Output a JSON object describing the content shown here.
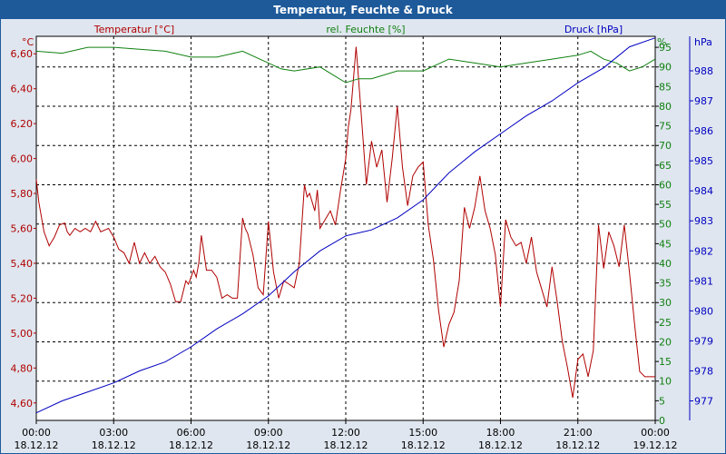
{
  "window": {
    "title": "Temperatur, Feuchte & Druck",
    "border_color": "#1e5a9a",
    "background": "#dfe6ef"
  },
  "chart_data": {
    "type": "line",
    "title": "Temperatur, Feuchte & Druck",
    "grid": true,
    "x_labels": [
      {
        "time": "00:00",
        "date": "18.12.12"
      },
      {
        "time": "03:00",
        "date": "18.12.12"
      },
      {
        "time": "06:00",
        "date": "18.12.12"
      },
      {
        "time": "09:00",
        "date": "18.12.12"
      },
      {
        "time": "12:00",
        "date": "18.12.12"
      },
      {
        "time": "15:00",
        "date": "18.12.12"
      },
      {
        "time": "18:00",
        "date": "18.12.12"
      },
      {
        "time": "21:00",
        "date": "18.12.12"
      },
      {
        "time": "00:00",
        "date": "19.12.12"
      }
    ],
    "xlim": [
      0,
      24
    ],
    "axes": {
      "temperature": {
        "unit": "°C",
        "ylim": [
          4.5,
          6.7
        ],
        "ticks": [
          {
            "v": 4.6,
            "label": "4,60"
          },
          {
            "v": 4.8,
            "label": "4,80"
          },
          {
            "v": 5.0,
            "label": "5,00"
          },
          {
            "v": 5.2,
            "label": "5,20"
          },
          {
            "v": 5.4,
            "label": "5,40"
          },
          {
            "v": 5.6,
            "label": "5,60"
          },
          {
            "v": 5.8,
            "label": "5,80"
          },
          {
            "v": 6.0,
            "label": "6,00"
          },
          {
            "v": 6.2,
            "label": "6,20"
          },
          {
            "v": 6.4,
            "label": "6,40"
          },
          {
            "v": 6.6,
            "label": "6,60"
          }
        ]
      },
      "humidity": {
        "unit": "%",
        "ylim": [
          0,
          97.8
        ],
        "ticks": [
          "0",
          "5",
          "10",
          "15",
          "20",
          "25",
          "30",
          "35",
          "40",
          "45",
          "50",
          "55",
          "60",
          "65",
          "70",
          "75",
          "80",
          "85",
          "90",
          "95"
        ]
      },
      "pressure": {
        "unit": "hPa",
        "ylim": [
          976.35,
          989.15
        ],
        "ticks": [
          "977",
          "978",
          "979",
          "980",
          "981",
          "982",
          "983",
          "984",
          "985",
          "986",
          "987",
          "988"
        ]
      }
    },
    "series": [
      {
        "name": "Temperatur [°C]",
        "axis": "temperature",
        "color": "#b00000",
        "x": [
          0.0,
          0.1,
          0.3,
          0.5,
          0.7,
          0.9,
          1.1,
          1.2,
          1.3,
          1.5,
          1.7,
          1.9,
          2.1,
          2.3,
          2.5,
          2.8,
          3.0,
          3.2,
          3.4,
          3.6,
          3.8,
          4.0,
          4.2,
          4.4,
          4.6,
          4.8,
          5.0,
          5.2,
          5.4,
          5.6,
          5.8,
          5.9,
          6.0,
          6.1,
          6.2,
          6.3,
          6.4,
          6.6,
          6.8,
          7.0,
          7.2,
          7.4,
          7.6,
          7.7,
          7.8,
          8.0,
          8.1,
          8.2,
          8.4,
          8.6,
          8.8,
          9.0,
          9.2,
          9.4,
          9.6,
          9.8,
          10.0,
          10.2,
          10.4,
          10.5,
          10.6,
          10.8,
          10.9,
          11.0,
          11.2,
          11.4,
          11.6,
          11.8,
          12.0,
          12.1,
          12.2,
          12.4,
          12.6,
          12.8,
          13.0,
          13.2,
          13.4,
          13.6,
          13.8,
          14.0,
          14.2,
          14.4,
          14.6,
          14.8,
          15.0,
          15.2,
          15.4,
          15.6,
          15.8,
          16.0,
          16.2,
          16.4,
          16.6,
          16.8,
          17.0,
          17.2,
          17.4,
          17.6,
          17.8,
          18.0,
          18.2,
          18.4,
          18.6,
          18.8,
          19.0,
          19.2,
          19.4,
          19.6,
          19.8,
          20.0,
          20.2,
          20.4,
          20.6,
          20.8,
          21.0,
          21.2,
          21.4,
          21.6,
          21.8,
          22.0,
          22.2,
          22.4,
          22.6,
          22.8,
          23.0,
          23.2,
          23.4,
          23.6,
          23.8,
          24.0
        ],
        "values": [
          5.88,
          5.75,
          5.58,
          5.5,
          5.55,
          5.62,
          5.63,
          5.58,
          5.56,
          5.6,
          5.58,
          5.6,
          5.58,
          5.64,
          5.58,
          5.6,
          5.55,
          5.48,
          5.46,
          5.4,
          5.52,
          5.4,
          5.46,
          5.4,
          5.44,
          5.38,
          5.35,
          5.28,
          5.18,
          5.18,
          5.3,
          5.28,
          5.32,
          5.36,
          5.32,
          5.4,
          5.56,
          5.36,
          5.36,
          5.32,
          5.2,
          5.22,
          5.2,
          5.2,
          5.2,
          5.66,
          5.6,
          5.57,
          5.45,
          5.26,
          5.22,
          5.64,
          5.35,
          5.2,
          5.3,
          5.28,
          5.26,
          5.4,
          5.85,
          5.78,
          5.8,
          5.7,
          5.82,
          5.6,
          5.65,
          5.7,
          5.62,
          5.82,
          6.0,
          6.18,
          6.28,
          6.64,
          6.25,
          5.85,
          6.1,
          5.95,
          6.05,
          5.75,
          6.0,
          6.3,
          5.95,
          5.73,
          5.9,
          5.95,
          5.98,
          5.62,
          5.42,
          5.13,
          4.92,
          5.05,
          5.12,
          5.3,
          5.72,
          5.6,
          5.72,
          5.9,
          5.7,
          5.6,
          5.45,
          5.15,
          5.65,
          5.55,
          5.5,
          5.52,
          5.4,
          5.55,
          5.35,
          5.25,
          5.15,
          5.38,
          5.18,
          4.95,
          4.8,
          4.63,
          4.85,
          4.88,
          4.75,
          4.9,
          5.62,
          5.37,
          5.58,
          5.5,
          5.38,
          5.62,
          5.35,
          5.05,
          4.78,
          4.75,
          4.75,
          4.75
        ]
      },
      {
        "name": "rel. Feuchte [%]",
        "axis": "humidity",
        "color": "#108010",
        "x": [
          0,
          1,
          2,
          3,
          4,
          5,
          6,
          7,
          8,
          9,
          9.5,
          10,
          11,
          11.5,
          12,
          12.5,
          13,
          14,
          15,
          16,
          17,
          18,
          19,
          20,
          21,
          21.5,
          22,
          22.5,
          23,
          23.5,
          24
        ],
        "values": [
          94,
          93.5,
          95,
          95,
          94.5,
          94,
          92.5,
          92.5,
          94,
          91,
          89.5,
          89,
          90,
          88,
          86,
          87,
          87,
          89,
          89,
          92,
          91,
          90,
          91,
          92,
          93,
          94,
          92,
          91,
          89,
          90,
          92
        ]
      },
      {
        "name": "Druck [hPa]",
        "axis": "pressure",
        "color": "#0000c0",
        "x": [
          0,
          1,
          2,
          3,
          4,
          5,
          6,
          7,
          8,
          9,
          10,
          11,
          12,
          13,
          14,
          15,
          16,
          17,
          18,
          19,
          20,
          21,
          22,
          23,
          24
        ],
        "values": [
          976.6,
          977.0,
          977.3,
          977.6,
          978.0,
          978.3,
          978.8,
          979.4,
          979.9,
          980.5,
          981.3,
          982.0,
          982.5,
          982.7,
          983.1,
          983.7,
          984.6,
          985.3,
          985.9,
          986.5,
          987.0,
          987.6,
          988.1,
          988.8,
          989.1
        ]
      }
    ]
  }
}
